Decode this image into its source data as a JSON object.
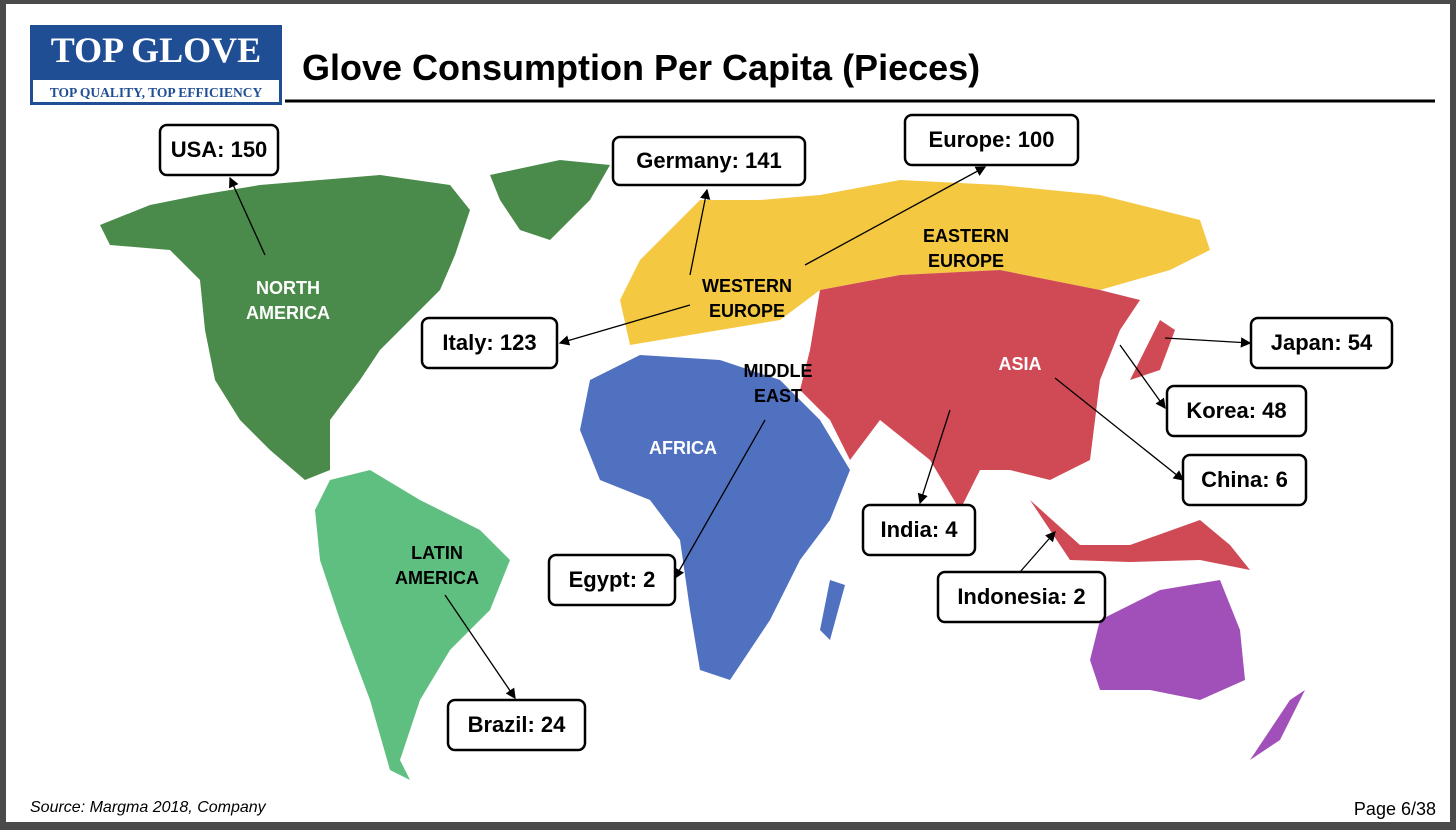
{
  "header": {
    "logo_title": "TOP GLOVE",
    "logo_tagline": "TOP QUALITY, TOP EFFICIENCY",
    "title": "Glove Consumption Per Capita (Pieces)"
  },
  "regions": [
    {
      "lines": [
        "NORTH",
        "AMERICA"
      ]
    },
    {
      "lines": [
        "LATIN",
        "AMERICA"
      ]
    },
    {
      "lines": [
        "WESTERN",
        "EUROPE"
      ]
    },
    {
      "lines": [
        "EASTERN",
        "EUROPE"
      ]
    },
    {
      "lines": [
        "MIDDLE",
        "EAST"
      ]
    },
    {
      "lines": [
        "AFRICA"
      ]
    },
    {
      "lines": [
        "ASIA"
      ]
    }
  ],
  "callouts": [
    "USA: 150",
    "Germany: 141",
    "Europe: 100",
    "Italy: 123",
    "Japan: 54",
    "Korea: 48",
    "China: 6",
    "India: 4",
    "Egypt: 2",
    "Indonesia: 2",
    "Brazil: 24"
  ],
  "footer": {
    "source": "Source: Margma 2018, Company",
    "page": "Page 6/38"
  }
}
